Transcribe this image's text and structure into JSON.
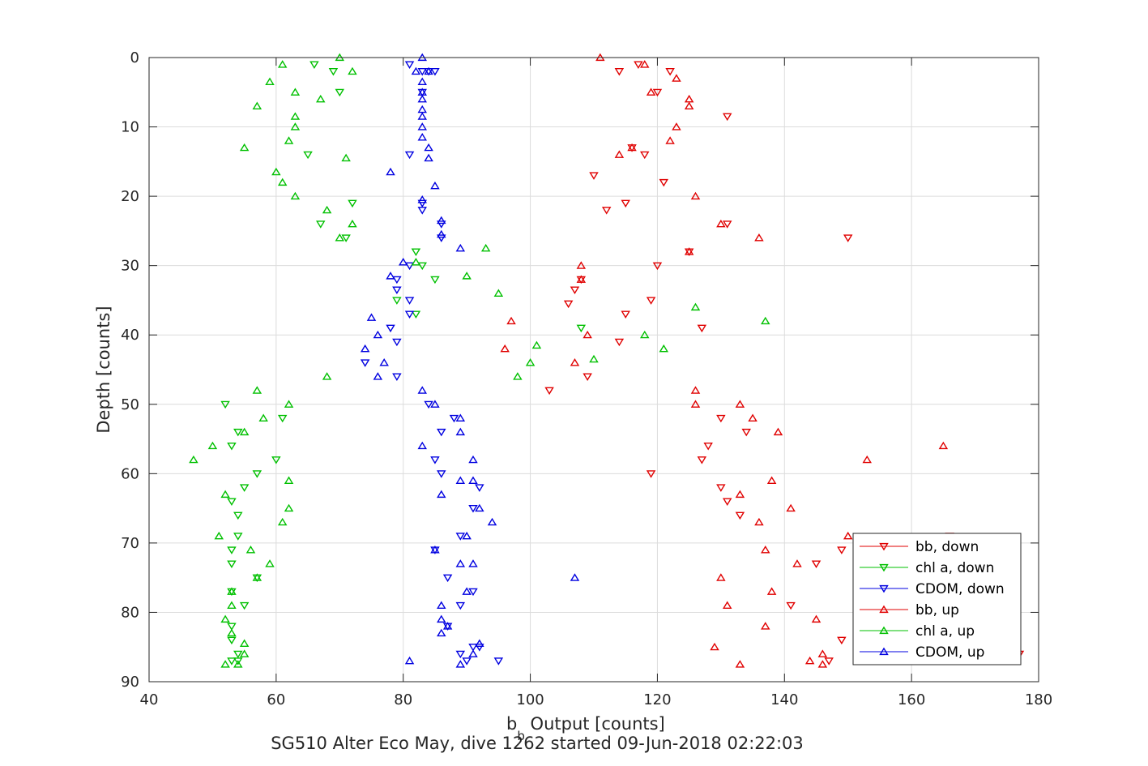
{
  "chart_data": {
    "type": "scatter",
    "title": "",
    "caption": "SG510 Alter Eco May, dive 1262 started 09-Jun-2018 02:22:03",
    "xlabel": "b_b Output [counts]",
    "xlabel_main": "b",
    "xlabel_sub": "b",
    "xlabel_rest": " Output [counts]",
    "ylabel": "Depth [counts]",
    "xlim": [
      40,
      180
    ],
    "ylim": [
      0,
      90
    ],
    "y_reversed": true,
    "grid": true,
    "x_ticks": [
      40,
      60,
      80,
      100,
      120,
      140,
      160,
      180
    ],
    "y_ticks": [
      0,
      10,
      20,
      30,
      40,
      50,
      60,
      70,
      80,
      90
    ],
    "legend_position": "bottom-right",
    "series": [
      {
        "name": "bb, down",
        "color": "#e00000",
        "marker": "triangle-down",
        "points": [
          [
            117,
            1
          ],
          [
            114,
            2
          ],
          [
            122,
            2
          ],
          [
            120,
            5
          ],
          [
            131,
            8.5
          ],
          [
            116,
            13
          ],
          [
            118,
            14
          ],
          [
            110,
            17
          ],
          [
            121,
            18
          ],
          [
            115,
            21
          ],
          [
            112,
            22
          ],
          [
            131,
            24
          ],
          [
            150,
            26
          ],
          [
            125,
            28
          ],
          [
            120,
            30
          ],
          [
            108,
            32
          ],
          [
            107,
            33.5
          ],
          [
            106,
            35.5
          ],
          [
            119,
            35
          ],
          [
            115,
            37
          ],
          [
            127,
            39
          ],
          [
            114,
            41
          ],
          [
            109,
            46
          ],
          [
            103,
            48
          ],
          [
            130,
            52
          ],
          [
            134,
            54
          ],
          [
            128,
            56
          ],
          [
            127,
            58
          ],
          [
            119,
            60
          ],
          [
            130,
            62
          ],
          [
            131,
            64
          ],
          [
            133,
            66
          ],
          [
            166,
            69
          ],
          [
            149,
            71
          ],
          [
            145,
            73
          ],
          [
            141,
            79
          ],
          [
            149,
            84
          ],
          [
            147,
            87
          ],
          [
            177,
            86
          ]
        ]
      },
      {
        "name": "chl a, down",
        "color": "#00c000",
        "marker": "triangle-down",
        "points": [
          [
            66,
            1
          ],
          [
            69,
            2
          ],
          [
            70,
            5
          ],
          [
            65,
            14
          ],
          [
            72,
            21
          ],
          [
            67,
            24
          ],
          [
            71,
            26
          ],
          [
            83,
            30
          ],
          [
            82,
            28
          ],
          [
            85,
            32
          ],
          [
            79,
            35
          ],
          [
            82,
            37
          ],
          [
            108,
            39
          ],
          [
            52,
            50
          ],
          [
            61,
            52
          ],
          [
            54,
            54
          ],
          [
            53,
            56
          ],
          [
            60,
            58
          ],
          [
            57,
            60
          ],
          [
            55,
            62
          ],
          [
            53,
            64
          ],
          [
            54,
            66
          ],
          [
            54,
            69
          ],
          [
            53,
            71
          ],
          [
            53,
            73
          ],
          [
            57,
            75
          ],
          [
            53,
            77
          ],
          [
            55,
            79
          ],
          [
            53,
            82
          ],
          [
            53,
            84
          ],
          [
            54,
            86
          ],
          [
            54,
            87
          ],
          [
            53,
            87
          ]
        ]
      },
      {
        "name": "CDOM, down",
        "color": "#0000e0",
        "marker": "triangle-down",
        "points": [
          [
            81,
            1
          ],
          [
            83,
            2
          ],
          [
            84,
            2
          ],
          [
            85,
            2
          ],
          [
            83,
            5
          ],
          [
            81,
            14
          ],
          [
            83,
            21
          ],
          [
            83,
            22
          ],
          [
            86,
            24
          ],
          [
            86,
            26
          ],
          [
            81,
            30
          ],
          [
            79,
            32
          ],
          [
            79,
            33.5
          ],
          [
            81,
            35
          ],
          [
            81,
            37
          ],
          [
            78,
            39
          ],
          [
            79,
            41
          ],
          [
            79,
            46
          ],
          [
            74,
            44
          ],
          [
            84,
            50
          ],
          [
            88,
            52
          ],
          [
            86,
            54
          ],
          [
            85,
            58
          ],
          [
            86,
            60
          ],
          [
            92,
            62
          ],
          [
            91,
            65
          ],
          [
            89,
            69
          ],
          [
            85,
            71
          ],
          [
            87,
            75
          ],
          [
            91,
            77
          ],
          [
            89,
            79
          ],
          [
            87,
            82
          ],
          [
            92,
            85
          ],
          [
            89,
            86
          ],
          [
            90,
            87
          ],
          [
            95,
            87
          ],
          [
            91,
            85
          ]
        ]
      },
      {
        "name": "bb, up",
        "color": "#e00000",
        "marker": "triangle-up",
        "points": [
          [
            111,
            0
          ],
          [
            118,
            1
          ],
          [
            123,
            3
          ],
          [
            119,
            5
          ],
          [
            125,
            6
          ],
          [
            125,
            7
          ],
          [
            123,
            10
          ],
          [
            122,
            12
          ],
          [
            116,
            13
          ],
          [
            114,
            14
          ],
          [
            126,
            20
          ],
          [
            130,
            24
          ],
          [
            136,
            26
          ],
          [
            125,
            28
          ],
          [
            108,
            30
          ],
          [
            108,
            32
          ],
          [
            97,
            38
          ],
          [
            109,
            40
          ],
          [
            96,
            42
          ],
          [
            107,
            44
          ],
          [
            126,
            48
          ],
          [
            126,
            50
          ],
          [
            133,
            50
          ],
          [
            135,
            52
          ],
          [
            139,
            54
          ],
          [
            165,
            56
          ],
          [
            153,
            58
          ],
          [
            138,
            61
          ],
          [
            133,
            63
          ],
          [
            136,
            67
          ],
          [
            141,
            65
          ],
          [
            150,
            69
          ],
          [
            137,
            71
          ],
          [
            142,
            73
          ],
          [
            130,
            75
          ],
          [
            138,
            77
          ],
          [
            131,
            79
          ],
          [
            145,
            81
          ],
          [
            137,
            82
          ],
          [
            129,
            85
          ],
          [
            144,
            87
          ],
          [
            146,
            86
          ],
          [
            146,
            87.5
          ],
          [
            133,
            87.5
          ]
        ]
      },
      {
        "name": "chl a, up",
        "color": "#00c000",
        "marker": "triangle-up",
        "points": [
          [
            70,
            0
          ],
          [
            61,
            1
          ],
          [
            72,
            2
          ],
          [
            59,
            3.5
          ],
          [
            63,
            5
          ],
          [
            67,
            6
          ],
          [
            57,
            7
          ],
          [
            63,
            8.5
          ],
          [
            63,
            10
          ],
          [
            62,
            12
          ],
          [
            55,
            13
          ],
          [
            71,
            14.5
          ],
          [
            60,
            16.5
          ],
          [
            61,
            18
          ],
          [
            63,
            20
          ],
          [
            68,
            22
          ],
          [
            72,
            24
          ],
          [
            70,
            26
          ],
          [
            93,
            27.5
          ],
          [
            82,
            29.5
          ],
          [
            90,
            31.5
          ],
          [
            95,
            34
          ],
          [
            126,
            36
          ],
          [
            137,
            38
          ],
          [
            118,
            40
          ],
          [
            121,
            42
          ],
          [
            101,
            41.5
          ],
          [
            100,
            44
          ],
          [
            110,
            43.5
          ],
          [
            98,
            46
          ],
          [
            68,
            46
          ],
          [
            57,
            48
          ],
          [
            62,
            50
          ],
          [
            58,
            52
          ],
          [
            55,
            54
          ],
          [
            50,
            56
          ],
          [
            47,
            58
          ],
          [
            62,
            61
          ],
          [
            52,
            63
          ],
          [
            62,
            65
          ],
          [
            61,
            67
          ],
          [
            51,
            69
          ],
          [
            56,
            71
          ],
          [
            59,
            73
          ],
          [
            57,
            75
          ],
          [
            53,
            77
          ],
          [
            53,
            79
          ],
          [
            52,
            81
          ],
          [
            53,
            83
          ],
          [
            55,
            84.5
          ],
          [
            55,
            86
          ],
          [
            52,
            87.5
          ],
          [
            54,
            87.5
          ]
        ]
      },
      {
        "name": "CDOM, up",
        "color": "#0000e0",
        "marker": "triangle-up",
        "points": [
          [
            83,
            0
          ],
          [
            82,
            2
          ],
          [
            84,
            2
          ],
          [
            83,
            3.5
          ],
          [
            83,
            5
          ],
          [
            83,
            6
          ],
          [
            83,
            7.5
          ],
          [
            83,
            8.5
          ],
          [
            83,
            10
          ],
          [
            83,
            11.5
          ],
          [
            84,
            13
          ],
          [
            84,
            14.5
          ],
          [
            78,
            16.5
          ],
          [
            85,
            18.5
          ],
          [
            83,
            20.5
          ],
          [
            86,
            23.5
          ],
          [
            86,
            25.5
          ],
          [
            89,
            27.5
          ],
          [
            80,
            29.5
          ],
          [
            78,
            31.5
          ],
          [
            75,
            37.5
          ],
          [
            76,
            40
          ],
          [
            74,
            42
          ],
          [
            77,
            44
          ],
          [
            76,
            46
          ],
          [
            83,
            48
          ],
          [
            85,
            50
          ],
          [
            89,
            52
          ],
          [
            89,
            54
          ],
          [
            83,
            56
          ],
          [
            91,
            58
          ],
          [
            89,
            61
          ],
          [
            91,
            61
          ],
          [
            86,
            63
          ],
          [
            92,
            65
          ],
          [
            94,
            67
          ],
          [
            90,
            69
          ],
          [
            85,
            71
          ],
          [
            89,
            73
          ],
          [
            91,
            73
          ],
          [
            107,
            75
          ],
          [
            90,
            77
          ],
          [
            86,
            79
          ],
          [
            86,
            81
          ],
          [
            87,
            82
          ],
          [
            86,
            83
          ],
          [
            92,
            84.5
          ],
          [
            91,
            86
          ],
          [
            81,
            87
          ],
          [
            89,
            87.5
          ]
        ]
      }
    ]
  }
}
